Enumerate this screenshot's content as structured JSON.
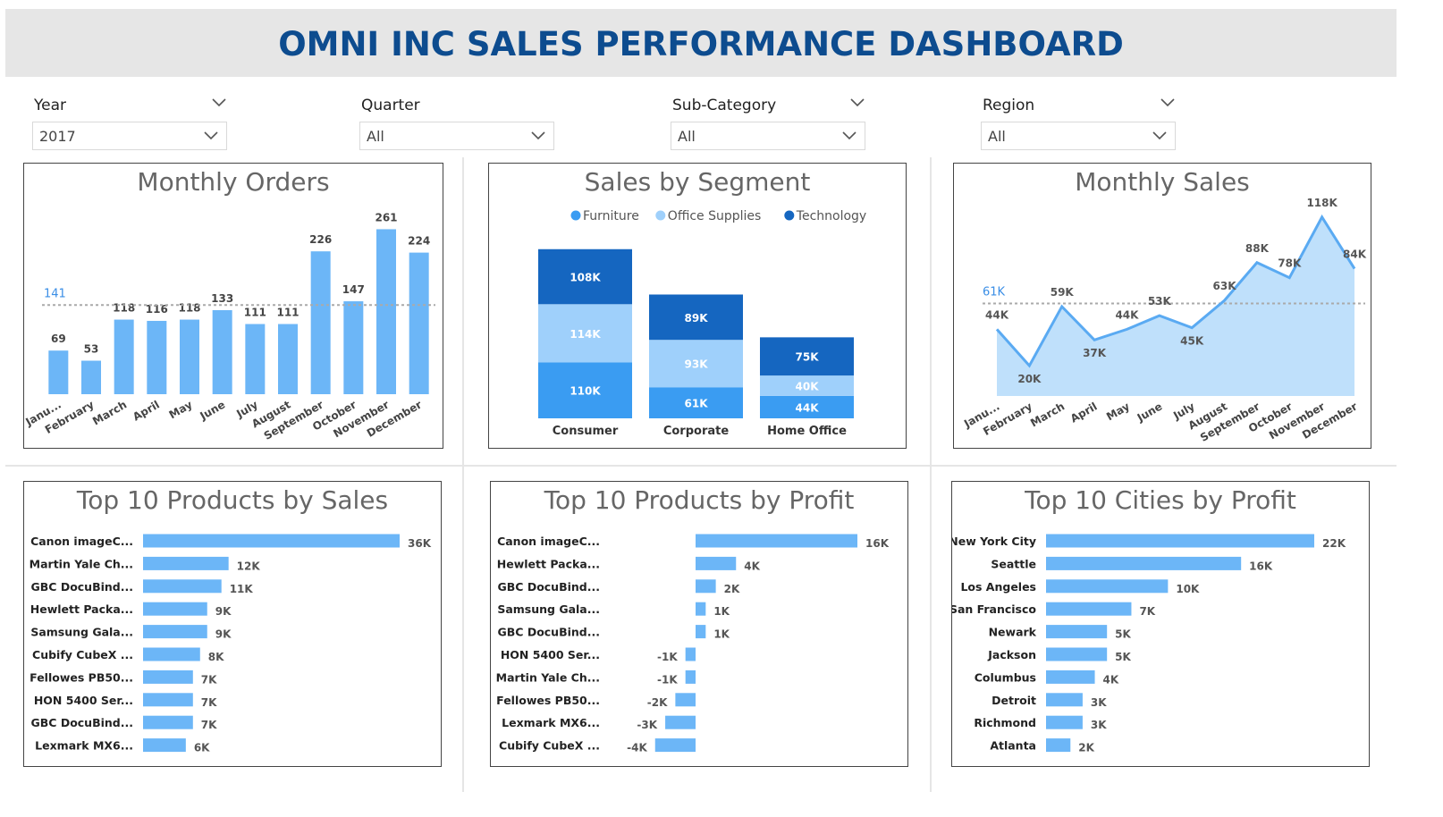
{
  "header": {
    "title": "OMNI INC SALES PERFORMANCE DASHBOARD"
  },
  "filters": [
    {
      "label": "Year",
      "value": "2017"
    },
    {
      "label": "Quarter",
      "value": "All"
    },
    {
      "label": "Sub-Category",
      "value": "All"
    },
    {
      "label": "Region",
      "value": "All"
    }
  ],
  "colors": {
    "bar": "#6cb6f7",
    "line": "#5aaaf2",
    "area": "#bfe0fb",
    "furniture": "#3a9cf2",
    "office_supplies": "#9fd0fb",
    "technology": "#1566c0",
    "title": "#0d4c8f",
    "avg_label": "#3a8ee6"
  },
  "chart_data": [
    {
      "id": "monthly_orders",
      "type": "bar",
      "title": "Monthly Orders",
      "categories": [
        "Janu...",
        "February",
        "March",
        "April",
        "May",
        "June",
        "July",
        "August",
        "September",
        "October",
        "November",
        "December"
      ],
      "values": [
        69,
        53,
        118,
        116,
        118,
        133,
        111,
        111,
        226,
        147,
        261,
        224
      ],
      "average": 141,
      "average_label": "141",
      "ylim": [
        0,
        280
      ]
    },
    {
      "id": "sales_by_segment",
      "type": "bar",
      "stacked": true,
      "title": "Sales by Segment",
      "categories": [
        "Consumer",
        "Corporate",
        "Home Office"
      ],
      "series": [
        {
          "name": "Furniture",
          "values": [
            110,
            61,
            44
          ],
          "labels": [
            "110K",
            "61K",
            "44K"
          ]
        },
        {
          "name": "Office Supplies",
          "values": [
            114,
            93,
            40
          ],
          "labels": [
            "114K",
            "93K",
            "40K"
          ]
        },
        {
          "name": "Technology",
          "values": [
            108,
            89,
            75
          ],
          "labels": [
            "108K",
            "89K",
            "75K"
          ]
        }
      ],
      "legend": "top"
    },
    {
      "id": "monthly_sales",
      "type": "area",
      "title": "Monthly Sales",
      "categories": [
        "Janu...",
        "February",
        "March",
        "April",
        "May",
        "June",
        "July",
        "August",
        "September",
        "October",
        "November",
        "December"
      ],
      "values": [
        44,
        20,
        59,
        37,
        44,
        53,
        45,
        63,
        88,
        78,
        118,
        84
      ],
      "labels": [
        "44K",
        "20K",
        "59K",
        "37K",
        "44K",
        "53K",
        "45K",
        "63K",
        "88K",
        "78K",
        "118K",
        "84K"
      ],
      "average": 61,
      "average_label": "61K",
      "ylim": [
        0,
        125
      ]
    },
    {
      "id": "top_products_sales",
      "type": "bar",
      "orientation": "horizontal",
      "title": "Top 10 Products by Sales",
      "categories": [
        "Canon imageC...",
        "Martin Yale Ch...",
        "GBC DocuBind...",
        "Hewlett Packa...",
        "Samsung Gala...",
        "Cubify CubeX ...",
        "Fellowes PB50...",
        "HON 5400 Ser...",
        "GBC DocuBind...",
        "Lexmark MX6..."
      ],
      "values": [
        36,
        12,
        11,
        9,
        9,
        8,
        7,
        7,
        7,
        6
      ],
      "labels": [
        "36K",
        "12K",
        "11K",
        "9K",
        "9K",
        "8K",
        "7K",
        "7K",
        "7K",
        "6K"
      ]
    },
    {
      "id": "top_products_profit",
      "type": "bar",
      "orientation": "horizontal",
      "title": "Top 10 Products by Profit",
      "categories": [
        "Canon imageC...",
        "Hewlett Packa...",
        "GBC DocuBind...",
        "Samsung Gala...",
        "GBC DocuBind...",
        "HON 5400 Ser...",
        "Martin Yale Ch...",
        "Fellowes PB50...",
        "Lexmark MX6...",
        "Cubify CubeX ..."
      ],
      "values": [
        16,
        4,
        2,
        1,
        1,
        -1,
        -1,
        -2,
        -3,
        -4
      ],
      "labels": [
        "16K",
        "4K",
        "2K",
        "1K",
        "1K",
        "-1K",
        "-1K",
        "-2K",
        "-3K",
        "-4K"
      ]
    },
    {
      "id": "top_cities_profit",
      "type": "bar",
      "orientation": "horizontal",
      "title": "Top 10 Cities by Profit",
      "categories": [
        "New York City",
        "Seattle",
        "Los Angeles",
        "San Francisco",
        "Newark",
        "Jackson",
        "Columbus",
        "Detroit",
        "Richmond",
        "Atlanta"
      ],
      "values": [
        22,
        16,
        10,
        7,
        5,
        5,
        4,
        3,
        3,
        2
      ],
      "labels": [
        "22K",
        "16K",
        "10K",
        "7K",
        "5K",
        "5K",
        "4K",
        "3K",
        "3K",
        "2K"
      ]
    }
  ]
}
